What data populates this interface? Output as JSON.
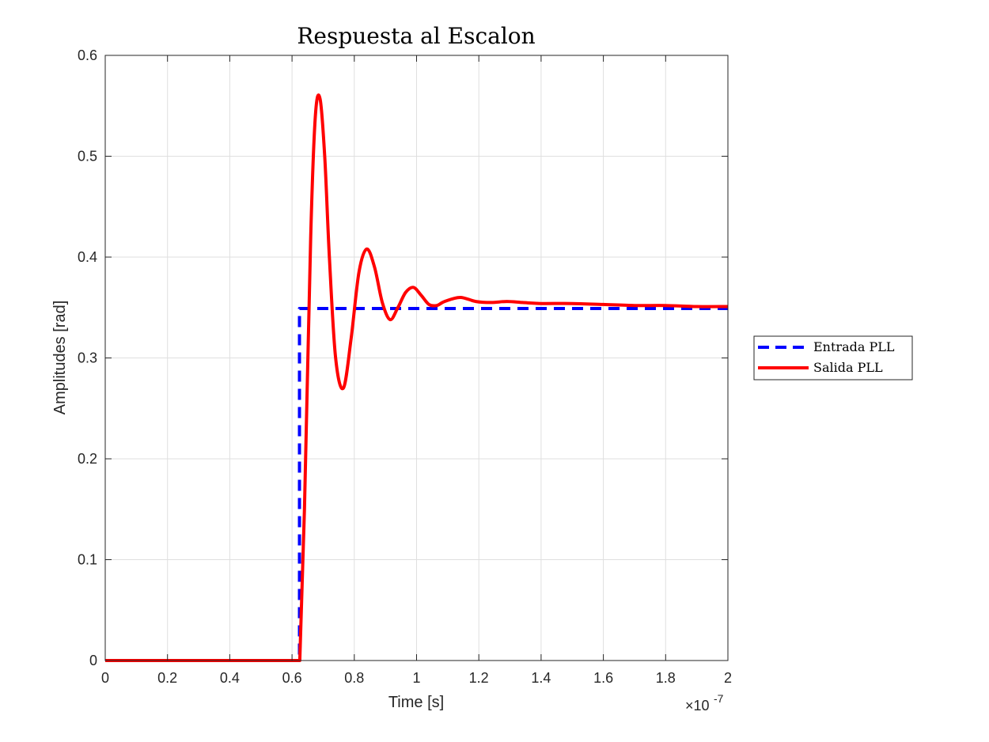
{
  "chart_data": {
    "type": "line",
    "title": "Respuesta al Escalon",
    "xlabel": "Time [s]",
    "ylabel": "Amplitudes [rad]",
    "xlim": [
      0,
      2
    ],
    "ylim": [
      0,
      0.6
    ],
    "x_multiplier_base": "×10",
    "x_multiplier_exp": "-7",
    "x_ticks": [
      0,
      0.2,
      0.4,
      0.6,
      0.8,
      1,
      1.2,
      1.4,
      1.6,
      1.8,
      2
    ],
    "x_tick_labels": [
      "0",
      "0.2",
      "0.4",
      "0.6",
      "0.8",
      "1",
      "1.2",
      "1.4",
      "1.6",
      "1.8",
      "2"
    ],
    "y_ticks": [
      0,
      0.1,
      0.2,
      0.3,
      0.4,
      0.5,
      0.6
    ],
    "y_tick_labels": [
      "0",
      "0.1",
      "0.2",
      "0.3",
      "0.4",
      "0.5",
      "0.6"
    ],
    "grid": true,
    "legend_position": "outside-right",
    "series": [
      {
        "name": "Entrada PLL",
        "color": "#0000ff",
        "style": "dashed",
        "x": [
          0,
          0.624,
          0.624,
          2
        ],
        "y": [
          0,
          0,
          0.349,
          0.349
        ]
      },
      {
        "name": "Salida PLL",
        "color": "#ff0000",
        "style": "solid",
        "x": [
          0,
          0.625,
          0.64,
          0.66,
          0.675,
          0.69,
          0.705,
          0.72,
          0.74,
          0.765,
          0.79,
          0.815,
          0.84,
          0.865,
          0.89,
          0.915,
          0.94,
          0.965,
          0.99,
          1.015,
          1.04,
          1.065,
          1.09,
          1.14,
          1.19,
          1.24,
          1.29,
          1.34,
          1.4,
          1.5,
          1.6,
          1.7,
          1.8,
          1.9,
          2.0
        ],
        "y": [
          0,
          0,
          0.15,
          0.42,
          0.54,
          0.557,
          0.5,
          0.4,
          0.3,
          0.27,
          0.32,
          0.385,
          0.408,
          0.39,
          0.355,
          0.338,
          0.35,
          0.365,
          0.37,
          0.362,
          0.353,
          0.352,
          0.356,
          0.36,
          0.356,
          0.355,
          0.356,
          0.355,
          0.354,
          0.354,
          0.353,
          0.352,
          0.352,
          0.351,
          0.351
        ]
      }
    ]
  }
}
